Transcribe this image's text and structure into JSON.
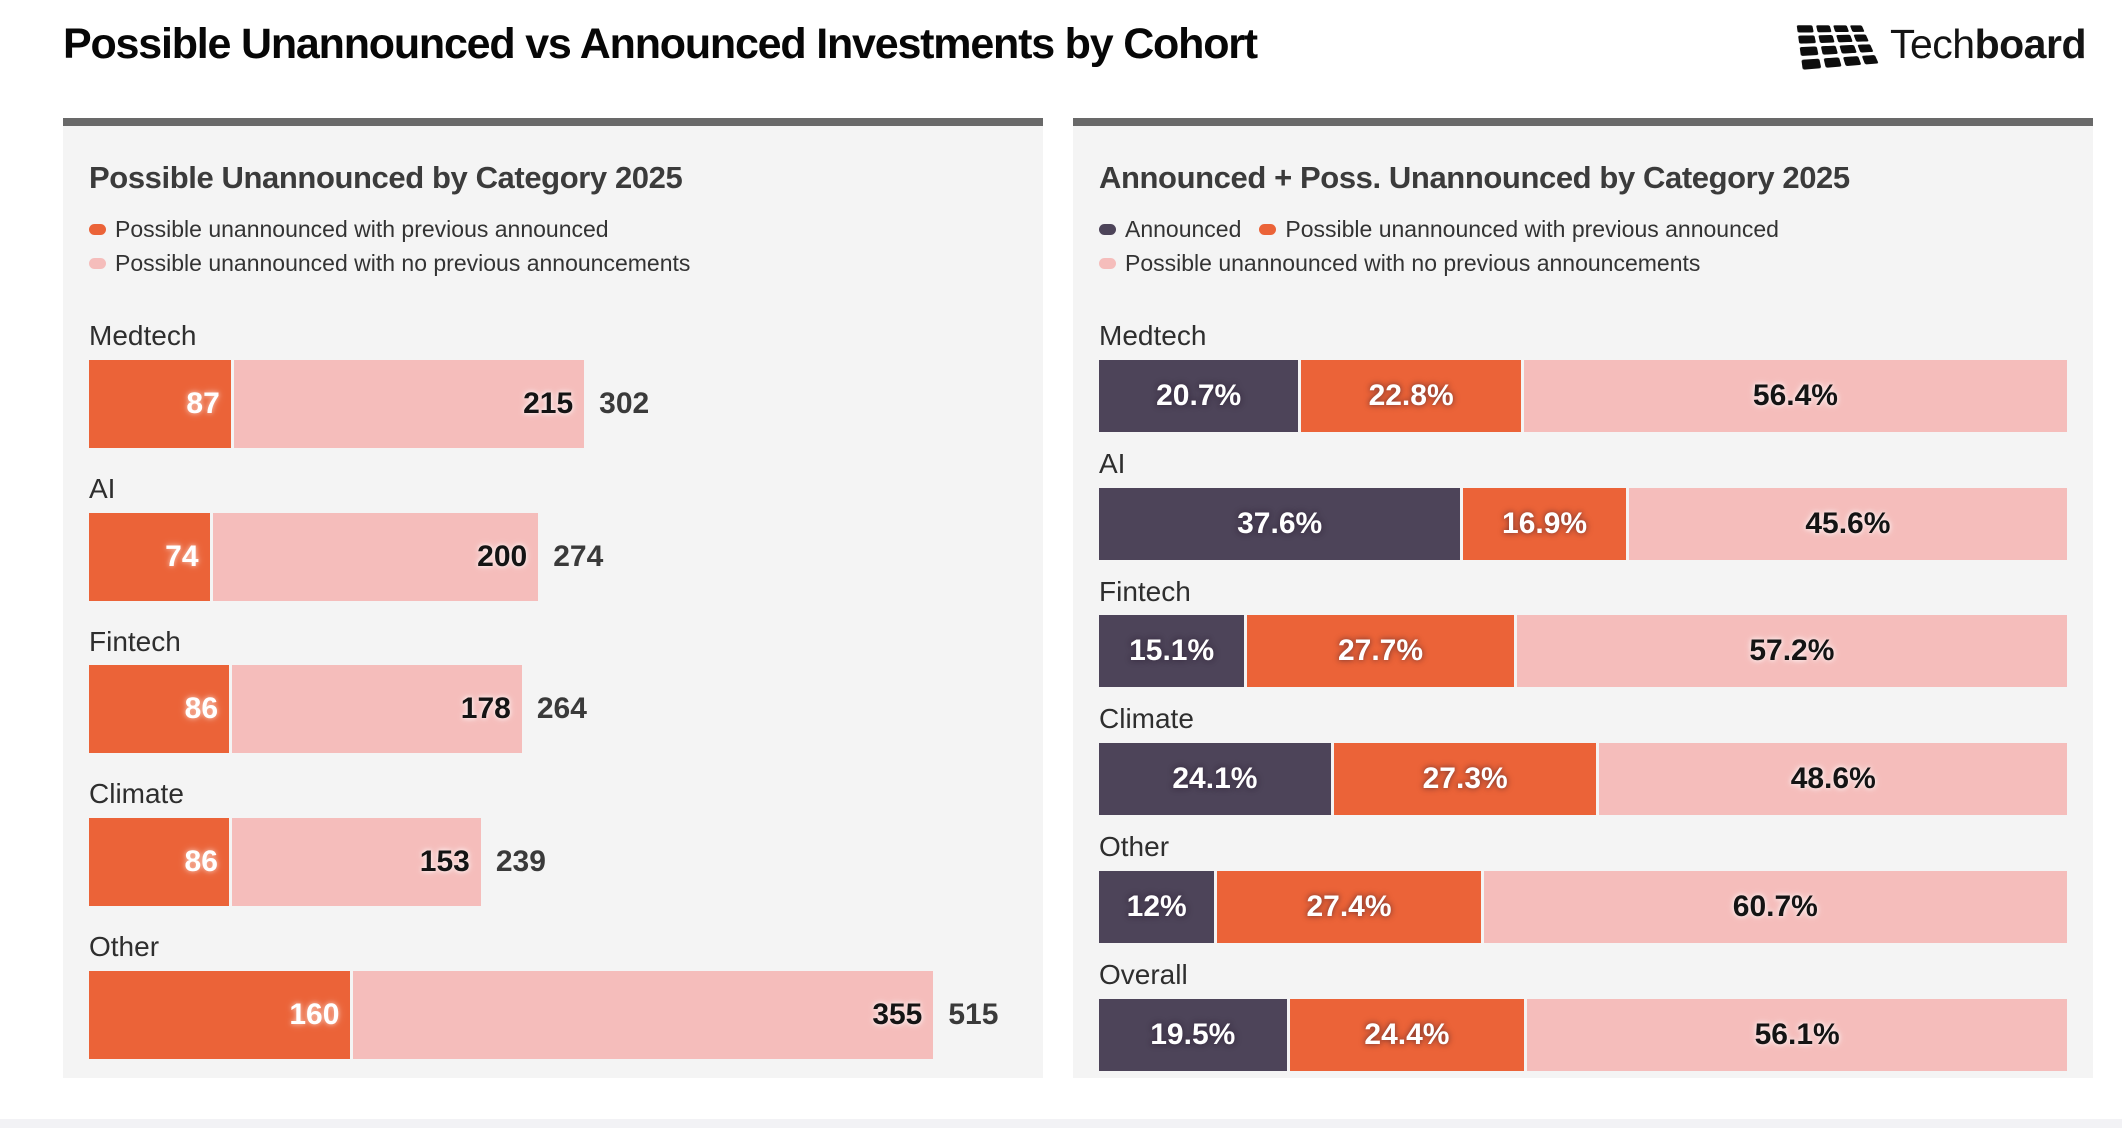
{
  "page": {
    "title": "Possible Unannounced vs Announced Investments by Cohort",
    "logo": {
      "text_regular": "Tech",
      "text_bold": "board"
    }
  },
  "colors": {
    "announced": "#4D4459",
    "possible_with_previous": "#EB6338",
    "possible_no_previous": "#F5BDBB",
    "panel_background": "#F4F4F4",
    "panel_top_border": "#696969"
  },
  "chart_data": [
    {
      "type": "bar",
      "orientation": "horizontal-stacked",
      "title": "Possible Unannounced by Category 2025",
      "legend": [
        {
          "label": "Possible unannounced with previous announced",
          "color": "#EB6338"
        },
        {
          "label": "Possible unannounced with no previous announcements",
          "color": "#F5BDBB"
        }
      ],
      "categories": [
        "Medtech",
        "AI",
        "Fintech",
        "Climate",
        "Other"
      ],
      "series": [
        {
          "name": "Possible unannounced with previous announced",
          "values": [
            87,
            74,
            86,
            86,
            160
          ]
        },
        {
          "name": "Possible unannounced with no previous announcements",
          "values": [
            215,
            200,
            178,
            153,
            355
          ]
        }
      ],
      "totals": [
        302,
        274,
        264,
        239,
        515
      ],
      "xlim": [
        0,
        566
      ],
      "grid": false,
      "legend_position": "top"
    },
    {
      "type": "bar",
      "orientation": "horizontal-stacked-100pct",
      "title": "Announced + Poss. Unannounced by Category 2025",
      "legend": [
        {
          "label": "Announced",
          "color": "#4D4459"
        },
        {
          "label": "Possible unannounced with previous announced",
          "color": "#EB6338"
        },
        {
          "label": "Possible unannounced with no previous announcements",
          "color": "#F5BDBB"
        }
      ],
      "categories": [
        "Medtech",
        "AI",
        "Fintech",
        "Climate",
        "Other",
        "Overall"
      ],
      "series": [
        {
          "name": "Announced",
          "values": [
            20.7,
            37.6,
            15.1,
            24.1,
            12,
            19.5
          ]
        },
        {
          "name": "Possible unannounced with previous announced",
          "values": [
            22.8,
            16.9,
            27.7,
            27.3,
            27.4,
            24.4
          ]
        },
        {
          "name": "Possible unannounced with no previous announcements",
          "values": [
            56.4,
            45.6,
            57.2,
            48.6,
            60.7,
            56.1
          ]
        }
      ],
      "value_suffix": "%",
      "grid": false,
      "legend_position": "top"
    }
  ]
}
